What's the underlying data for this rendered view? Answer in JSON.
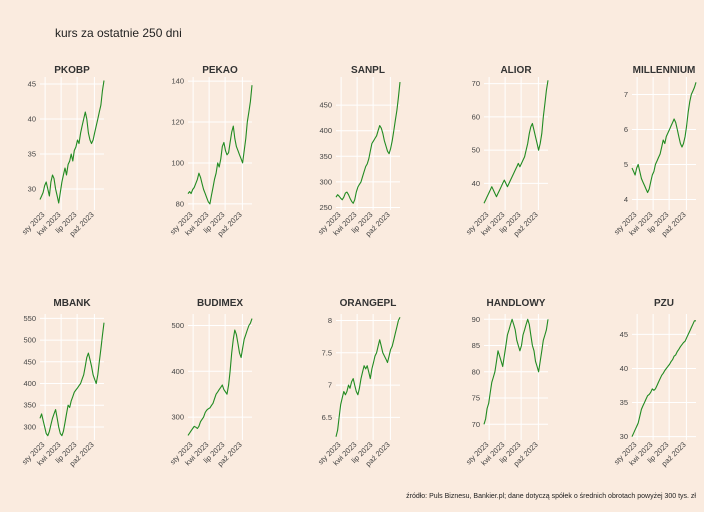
{
  "title": "kurs za ostatnie 250 dni",
  "source": "źródło: Puls Biznesu, Bankier.pl; dane dotyczą spółek o średnich obrotach powyżej 300 tys. zł",
  "colors": {
    "background": "#FAEBDF",
    "line": "#228B22",
    "grid": "#FFFFFF"
  },
  "x_ticks": [
    "sty 2023",
    "kwi 2023",
    "lip 2023",
    "paź 2023"
  ],
  "chart_data": [
    {
      "type": "line",
      "title": "PKOBP",
      "yticks": [
        30,
        35,
        40,
        45
      ],
      "ylim": [
        27,
        46
      ],
      "series": [
        {
          "values": [
            28.5,
            29,
            29.5,
            30.5,
            31,
            30,
            29,
            31,
            32,
            31.5,
            30,
            29,
            28,
            29.5,
            31,
            32,
            33,
            32,
            33.5,
            34,
            35,
            34,
            35.5,
            36,
            37,
            36.5,
            38,
            39,
            40,
            41,
            40,
            38,
            37,
            36.5,
            37,
            38,
            39,
            40,
            41,
            42,
            44,
            45.5
          ]
        }
      ]
    },
    {
      "type": "line",
      "title": "PEKAO",
      "yticks": [
        80,
        100,
        120,
        140
      ],
      "ylim": [
        77,
        142
      ],
      "series": [
        {
          "values": [
            85,
            86,
            85,
            87,
            88,
            90,
            92,
            95,
            93,
            90,
            87,
            85,
            83,
            81,
            80,
            84,
            88,
            92,
            95,
            100,
            98,
            102,
            108,
            110,
            106,
            104,
            105,
            110,
            115,
            118,
            112,
            108,
            106,
            104,
            102,
            100,
            106,
            112,
            120,
            125,
            130,
            138
          ]
        }
      ]
    },
    {
      "type": "line",
      "title": "SANPL",
      "yticks": [
        250,
        300,
        350,
        400,
        450
      ],
      "ylim": [
        245,
        505
      ],
      "series": [
        {
          "values": [
            270,
            275,
            272,
            268,
            265,
            270,
            278,
            280,
            275,
            268,
            262,
            258,
            265,
            280,
            290,
            295,
            300,
            310,
            320,
            330,
            335,
            345,
            360,
            375,
            380,
            385,
            390,
            400,
            410,
            405,
            395,
            380,
            370,
            360,
            355,
            365,
            380,
            400,
            420,
            440,
            465,
            495
          ]
        }
      ]
    },
    {
      "type": "line",
      "title": "ALIOR",
      "yticks": [
        40,
        50,
        60,
        70
      ],
      "ylim": [
        32,
        72
      ],
      "series": [
        {
          "values": [
            34,
            35,
            36,
            37,
            38,
            39,
            38,
            37,
            36,
            37,
            38,
            39,
            40,
            41,
            40,
            39,
            40,
            41,
            42,
            43,
            44,
            45,
            46,
            45,
            46,
            47,
            48,
            50,
            52,
            55,
            57,
            58,
            56,
            54,
            52,
            50,
            52,
            55,
            60,
            64,
            68,
            71
          ]
        }
      ]
    },
    {
      "type": "line",
      "title": "MILLENNIUM",
      "yticks": [
        4,
        5,
        6,
        7
      ],
      "ylim": [
        3.7,
        7.5
      ],
      "series": [
        {
          "values": [
            4.9,
            4.8,
            4.7,
            4.9,
            5.0,
            4.8,
            4.6,
            4.5,
            4.4,
            4.3,
            4.2,
            4.3,
            4.5,
            4.7,
            4.8,
            5.0,
            5.1,
            5.2,
            5.3,
            5.5,
            5.7,
            5.6,
            5.8,
            5.9,
            6.0,
            6.1,
            6.2,
            6.3,
            6.2,
            6.0,
            5.8,
            5.6,
            5.5,
            5.6,
            5.8,
            6.1,
            6.5,
            6.8,
            7.0,
            7.1,
            7.2,
            7.35
          ]
        }
      ]
    },
    {
      "type": "line",
      "title": "MBANK",
      "yticks": [
        300,
        350,
        400,
        450,
        500,
        550
      ],
      "ylim": [
        270,
        560
      ],
      "series": [
        {
          "values": [
            320,
            330,
            315,
            300,
            285,
            280,
            290,
            305,
            320,
            330,
            340,
            320,
            300,
            285,
            280,
            290,
            310,
            330,
            350,
            345,
            360,
            370,
            380,
            385,
            390,
            395,
            400,
            410,
            420,
            440,
            460,
            470,
            455,
            440,
            420,
            410,
            400,
            420,
            450,
            480,
            510,
            540
          ]
        }
      ]
    },
    {
      "type": "line",
      "title": "BUDIMEX",
      "yticks": [
        300,
        400,
        500
      ],
      "ylim": [
        250,
        525
      ],
      "series": [
        {
          "values": [
            260,
            265,
            270,
            275,
            280,
            278,
            275,
            280,
            290,
            295,
            300,
            310,
            315,
            318,
            320,
            325,
            330,
            340,
            350,
            355,
            360,
            365,
            370,
            360,
            355,
            350,
            370,
            400,
            440,
            470,
            490,
            480,
            460,
            440,
            430,
            450,
            470,
            480,
            490,
            500,
            505,
            515
          ]
        }
      ]
    },
    {
      "type": "line",
      "title": "ORANGEPL",
      "yticks": [
        6.5,
        7.0,
        7.5,
        8.0
      ],
      "ylim": [
        6.15,
        8.1
      ],
      "series": [
        {
          "values": [
            6.2,
            6.3,
            6.5,
            6.7,
            6.8,
            6.9,
            6.85,
            6.9,
            7.0,
            6.95,
            7.05,
            7.1,
            7.0,
            6.9,
            6.85,
            6.95,
            7.1,
            7.2,
            7.3,
            7.25,
            7.3,
            7.2,
            7.1,
            7.25,
            7.35,
            7.45,
            7.5,
            7.6,
            7.7,
            7.6,
            7.5,
            7.45,
            7.4,
            7.35,
            7.45,
            7.55,
            7.6,
            7.7,
            7.8,
            7.9,
            8.0,
            8.05
          ]
        }
      ]
    },
    {
      "type": "line",
      "title": "HANDLOWY",
      "yticks": [
        70,
        75,
        80,
        85,
        90
      ],
      "ylim": [
        67,
        91
      ],
      "series": [
        {
          "values": [
            70,
            71,
            73,
            74,
            76,
            78,
            79,
            80,
            82,
            84,
            83,
            82,
            81,
            83,
            85,
            87,
            88,
            89,
            90,
            89,
            88,
            86,
            85,
            84,
            85,
            87,
            88,
            89,
            90,
            89,
            87,
            85,
            84,
            82,
            81,
            80,
            82,
            84,
            86,
            87,
            88,
            90
          ]
        }
      ]
    },
    {
      "type": "line",
      "title": "PZU",
      "yticks": [
        30,
        35,
        40,
        45
      ],
      "ylim": [
        29.5,
        48
      ],
      "series": [
        {
          "values": [
            30,
            30.5,
            31,
            31.5,
            32,
            33,
            34,
            34.5,
            35,
            35.5,
            36,
            36.2,
            36.5,
            37,
            36.8,
            37,
            37.5,
            38,
            38.5,
            39,
            39.3,
            39.7,
            40,
            40.3,
            40.6,
            41,
            41.3,
            41.8,
            42,
            42.5,
            42.8,
            43.2,
            43.5,
            43.8,
            44,
            44.5,
            45,
            45.5,
            46,
            46.5,
            47,
            47
          ]
        }
      ]
    }
  ]
}
